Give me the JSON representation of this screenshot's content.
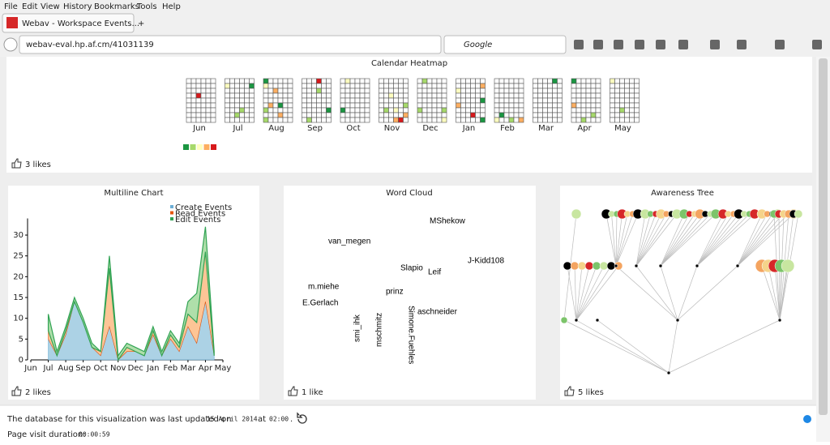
{
  "browser": {
    "menu": [
      "File",
      "Edit",
      "View",
      "History",
      "Bookmarks",
      "Tools",
      "Help"
    ],
    "tab_title": "Webav - Workspace Events...",
    "url": "webav-eval.hp.af.cm/41031139",
    "search_placeholder": "Google"
  },
  "heatmap": {
    "title": "Calendar Heatmap",
    "months": [
      "Jun",
      "Jul",
      "Aug",
      "Sep",
      "Oct",
      "Nov",
      "Dec",
      "Jan",
      "Feb",
      "Mar",
      "Apr",
      "May"
    ],
    "legend_colors": [
      "#1a9641",
      "#a6d96a",
      "#ffffbf",
      "#fdae61",
      "#d7191c"
    ],
    "likes": "3 likes"
  },
  "multiline": {
    "type": "stacked_area",
    "title": "Multiline Chart",
    "x": [
      1,
      1.5,
      2,
      2.5,
      3,
      3.5,
      4,
      4.5,
      5,
      5.5,
      6,
      6.5,
      7,
      7.5,
      8,
      8.5,
      9,
      9.5,
      10,
      10.5
    ],
    "series": [
      {
        "name": "Create Events",
        "color": "#9ecae1",
        "values": [
          5,
          1,
          6,
          14,
          9,
          3,
          1,
          8,
          0,
          2,
          2,
          1,
          6,
          1,
          5,
          2,
          8,
          4,
          14,
          1
        ]
      },
      {
        "name": "Read Events",
        "color": "#fdbb84",
        "values": [
          2,
          0,
          1,
          0,
          0,
          0,
          1,
          14,
          0,
          1,
          0,
          0,
          1,
          0,
          1,
          1,
          3,
          5,
          12,
          0
        ]
      },
      {
        "name": "Edit Events",
        "color": "#a1d99b",
        "values": [
          4,
          1,
          1,
          1,
          1,
          1,
          0,
          3,
          1,
          1,
          1,
          1,
          1,
          1,
          1,
          1,
          3,
          7,
          6,
          1
        ]
      }
    ],
    "xlim": [
      0,
      11
    ],
    "ylim": [
      0,
      34
    ],
    "yticks": [
      0,
      5,
      10,
      15,
      20,
      25,
      30
    ],
    "xticks": [
      {
        "value": 0,
        "label": "Jun"
      },
      {
        "value": 1,
        "label": "Jul"
      },
      {
        "value": 2,
        "label": "Aug"
      },
      {
        "value": 3,
        "label": "Sep"
      },
      {
        "value": 4,
        "label": "Oct"
      },
      {
        "value": 5,
        "label": "Nov"
      },
      {
        "value": 6,
        "label": "Dec"
      },
      {
        "value": 7,
        "label": "Jan"
      },
      {
        "value": 8,
        "label": "Feb"
      },
      {
        "value": 9,
        "label": "Mar"
      },
      {
        "value": 10,
        "label": "Apr"
      },
      {
        "value": 11,
        "label": "May"
      }
    ],
    "likes": "2 likes"
  },
  "wordcloud": {
    "title": "Word Cloud",
    "words": [
      "van_megen",
      "MShekow",
      "prinz",
      "Leif",
      "mschmitz",
      "m.miehe",
      "J-Kidd108",
      "Slapio",
      "E.Gerlach",
      "smi_ihk",
      "aschneider",
      "Simone.Fuehles"
    ],
    "likes": "1 like"
  },
  "tree": {
    "title": "Awareness Tree",
    "likes": "5 likes"
  },
  "footer": {
    "updated_text": "The database for this visualization was last updated on",
    "date": "15 April 2014",
    "at": "at",
    "time": "02:00",
    "period": ".",
    "duration_label": "Page visit duration:",
    "duration": "00:00:59"
  }
}
